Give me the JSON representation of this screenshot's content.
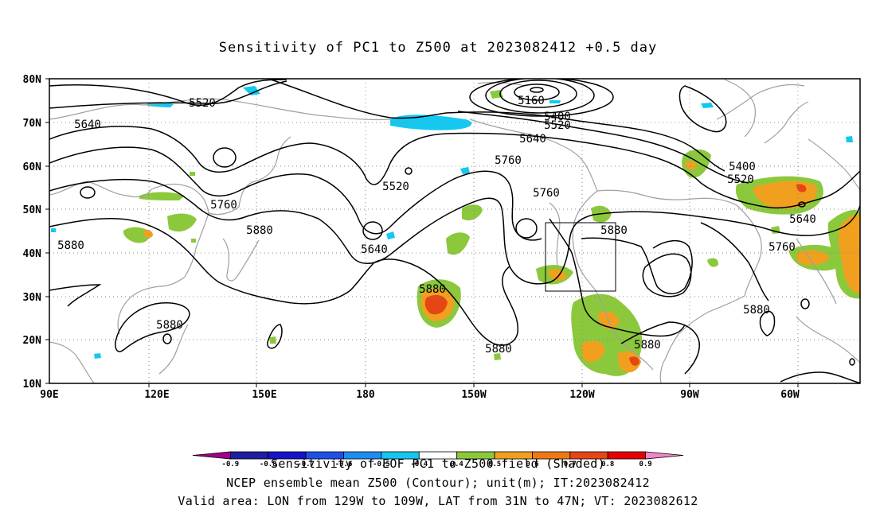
{
  "title": "Sensitivity of PC1 to Z500 at 2023082412 +0.5 day",
  "axes": {
    "lat_labels": [
      "80N",
      "70N",
      "60N",
      "50N",
      "40N",
      "30N",
      "20N",
      "10N"
    ],
    "lon_labels": [
      "90E",
      "120E",
      "150E",
      "180",
      "150W",
      "120W",
      "90W",
      "60W"
    ]
  },
  "contour_labels": [
    "5160",
    "5400",
    "5520",
    "5640",
    "5760",
    "5880",
    "5520",
    "5640",
    "5760",
    "5880",
    "5400",
    "5520",
    "5640",
    "5760",
    "5880",
    "5520",
    "5640",
    "5760",
    "5880",
    "5880",
    "5880",
    "5880",
    "5880"
  ],
  "colorbar": {
    "labels": [
      "-0.9",
      "-0.8",
      "-0.7",
      "-0.6",
      "-0.5",
      "-0.4",
      "0.4",
      "0.5",
      "0.6",
      "0.7",
      "0.8",
      "0.9"
    ],
    "colors": [
      "#a0008c",
      "#1e1ea0",
      "#1414c8",
      "#1e50e6",
      "#1e8cf0",
      "#14c8f0",
      "#ffffff",
      "#8cc83c",
      "#f0a01e",
      "#f07814",
      "#e64614",
      "#e60000",
      "#f088c8"
    ]
  },
  "valid_box": {
    "lon_w": 129,
    "lon_e": 109,
    "lat_s": 31,
    "lat_n": 47
  },
  "caption_lines": [
    "Sensitivity of EOF PC1 to Z500 field (Shaded)",
    "NCEP ensemble mean Z500 (Contour); unit(m); IT:2023082412",
    "Valid area: LON from 129W to 109W, LAT from 31N to 47N; VT: 2023082612"
  ],
  "colors": {
    "contour": "#000000",
    "coast": "#a0a0a0",
    "grid": "#888888"
  }
}
